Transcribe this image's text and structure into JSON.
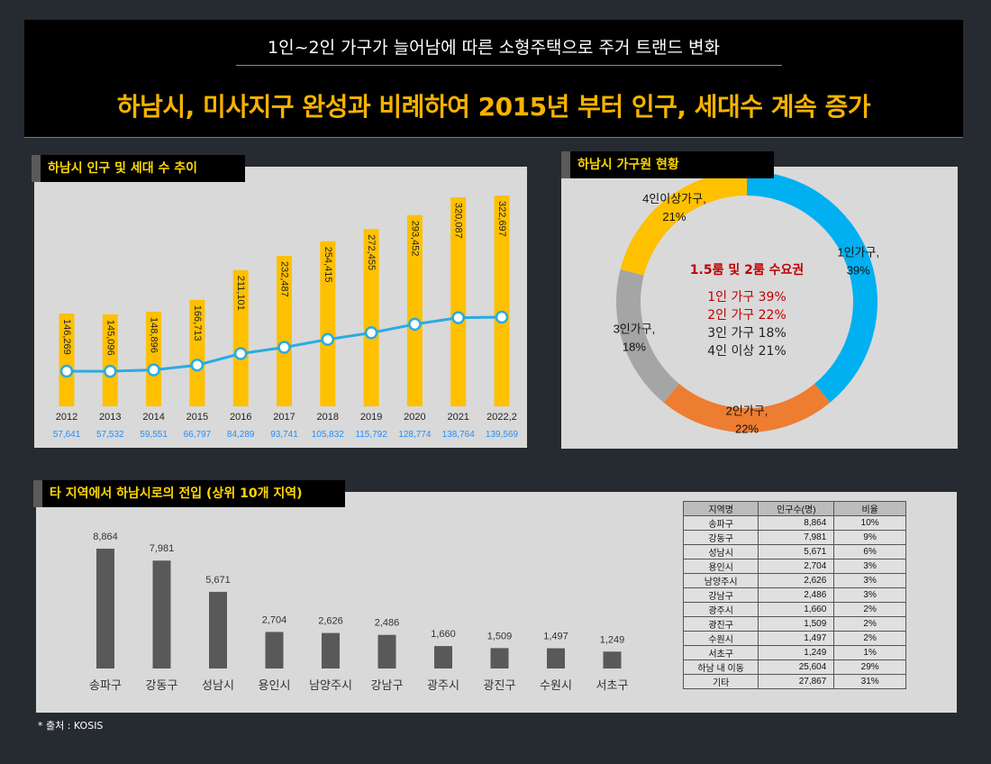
{
  "header": {
    "subtitle": "1인~2인 가구가 늘어남에 따른 소형주택으로 주거 트랜드 변화",
    "title": "하남시, 미사지구 완성과 비례하여 2015년 부터 인구, 세대수 계속 증가"
  },
  "panels": {
    "population": "하남시 인구 및 세대 수 추이",
    "households": "하남시 가구원 현황",
    "migration": "타 지역에서 하남시로의 전입 (상위 10개 지역)"
  },
  "colors": {
    "bar": "#ffc000",
    "line": "#29abe2",
    "donut1": "#00b0f0",
    "donut2": "#ed7d31",
    "donut3": "#a5a5a5",
    "donut4": "#ffc000",
    "migration_bar": "#595959",
    "households_blue": "#00a0e9"
  },
  "chart_data": [
    {
      "type": "bar",
      "categories": [
        "2012",
        "2013",
        "2014",
        "2015",
        "2016",
        "2017",
        "2018",
        "2019",
        "2020",
        "2021",
        "2022.2"
      ],
      "category_labels": [
        "2012",
        "2013",
        "2014",
        "2015",
        "2016",
        "2017",
        "2018",
        "2019",
        "2020",
        "2021",
        "2022,2"
      ],
      "series": [
        {
          "type": "bar",
          "values": [
            146269,
            145096,
            148896,
            166713,
            211101,
            232487,
            254415,
            272455,
            293452,
            320087,
            322697
          ],
          "labels": [
            "146,269",
            "145,096",
            "148,896",
            "166,713",
            "211,101",
            "232,487",
            "254,415",
            "272,455",
            "293,452",
            "320,087",
            "322,697"
          ]
        },
        {
          "type": "line",
          "values": [
            57641,
            57532,
            59551,
            66797,
            84289,
            93741,
            105832,
            115792,
            128774,
            138764,
            139569
          ],
          "labels": [
            "57,641",
            "57,532",
            "59,551",
            "66,797",
            "84,289",
            "93,741",
            "105,832",
            "115,792",
            "128,774",
            "138,764",
            "139,569"
          ]
        }
      ]
    },
    {
      "type": "pie",
      "categories": [
        "1인가구",
        "2인가구",
        "3인가구",
        "4인이상가구"
      ],
      "values": [
        39,
        22,
        18,
        21
      ],
      "labels": [
        {
          "name": "1인가구,",
          "pct": "39%"
        },
        {
          "name": "2인가구,",
          "pct": "22%"
        },
        {
          "name": "3인가구,",
          "pct": "18%"
        },
        {
          "name": "4인이상가구,",
          "pct": "21%"
        }
      ],
      "center_title": "1.5룸 및 2룸 수요권",
      "center_lines": [
        "1인 가구 39%",
        "2인 가구 22%",
        "3인 가구 18%",
        "4인 이상 21%"
      ]
    },
    {
      "type": "bar",
      "categories": [
        "송파구",
        "강동구",
        "성남시",
        "용인시",
        "남양주시",
        "강남구",
        "광주시",
        "광진구",
        "수원시",
        "서초구"
      ],
      "values": [
        8864,
        7981,
        5671,
        2704,
        2626,
        2486,
        1660,
        1509,
        1497,
        1249
      ],
      "labels": [
        "8,864",
        "7,981",
        "5,671",
        "2,704",
        "2,626",
        "2,486",
        "1,660",
        "1,509",
        "1,497",
        "1,249"
      ]
    },
    {
      "type": "table",
      "columns": [
        "지역명",
        "인구수(명)",
        "비율"
      ],
      "rows": [
        [
          "송파구",
          "8,864",
          "10%"
        ],
        [
          "강동구",
          "7,981",
          "9%"
        ],
        [
          "성남시",
          "5,671",
          "6%"
        ],
        [
          "용인시",
          "2,704",
          "3%"
        ],
        [
          "남양주시",
          "2,626",
          "3%"
        ],
        [
          "강남구",
          "2,486",
          "3%"
        ],
        [
          "광주시",
          "1,660",
          "2%"
        ],
        [
          "광진구",
          "1,509",
          "2%"
        ],
        [
          "수원시",
          "1,497",
          "2%"
        ],
        [
          "서초구",
          "1,249",
          "1%"
        ],
        [
          "하남 내 이동",
          "25,604",
          "29%"
        ],
        [
          "기타",
          "27,867",
          "31%"
        ]
      ]
    }
  ],
  "source": "* 출처 : KOSIS"
}
